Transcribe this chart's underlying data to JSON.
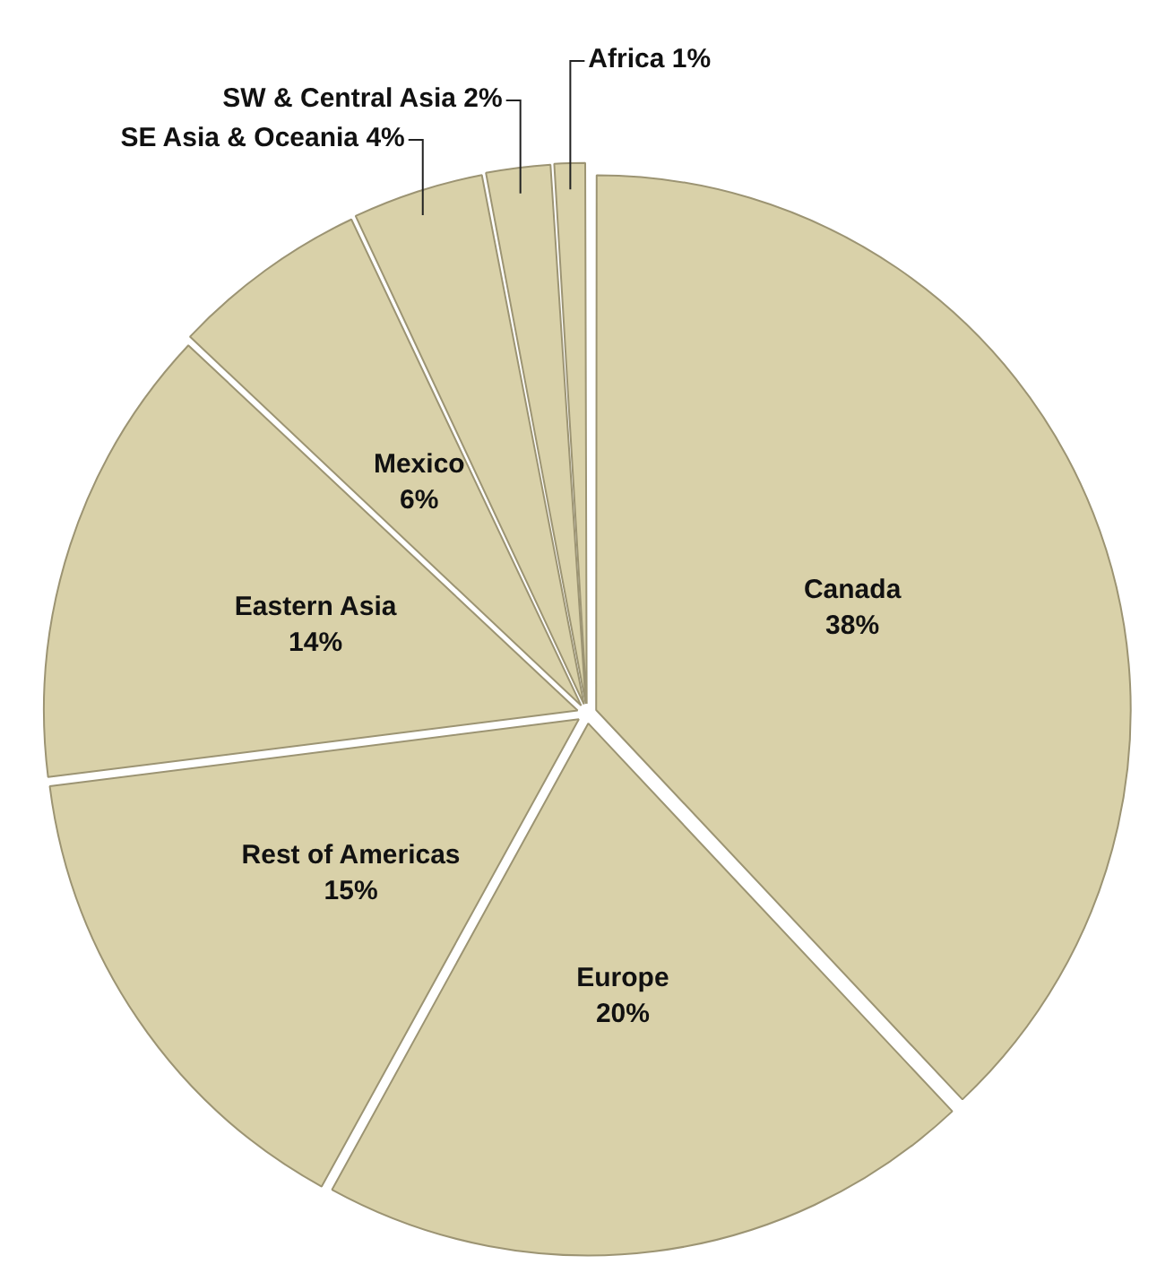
{
  "chart_data": {
    "type": "pie",
    "categories": [
      "Canada",
      "Europe",
      "Rest of Americas",
      "Eastern Asia",
      "Mexico",
      "SE Asia & Oceania",
      "SW & Central Asia",
      "Africa"
    ],
    "values": [
      38,
      20,
      15,
      14,
      6,
      4,
      2,
      1
    ],
    "value_labels": [
      "38%",
      "20%",
      "15%",
      "14%",
      "6%",
      "4%",
      "2%",
      "1%"
    ],
    "colors": [
      "#d9d1a9",
      "#d9d1a9",
      "#d9d1a9",
      "#d9d1a9",
      "#d9d1a9",
      "#d9d1a9",
      "#d9d1a9",
      "#d9d1a9"
    ],
    "legend": false
  }
}
